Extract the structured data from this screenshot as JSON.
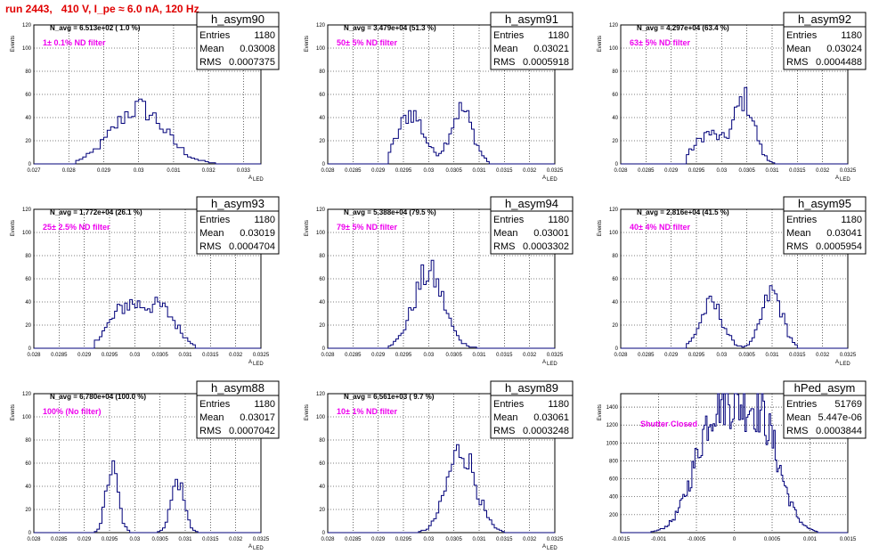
{
  "run_title": "run 2443,   410 V, I_pe ≈ 6.0 nA, 120 Hz",
  "colors": {
    "title": "#e00000",
    "annotation": "#ee00ee",
    "hist": "#00007a",
    "grid": "#000000"
  },
  "chart_data": [
    {
      "type": "histogram",
      "name": "h_asym90",
      "n_avg": "N_avg = 6.513e+02 ( 1.0 %)",
      "annotation": "1± 0.1% ND filter",
      "stats": {
        "Entries": "1180",
        "Mean": "0.03008",
        "RMS": "0.0007375"
      },
      "xlabel": "A",
      "xlabel_sub": "LED",
      "ylabel": "Events",
      "xlim": [
        0.027,
        0.0335
      ],
      "ylim": [
        0,
        120
      ],
      "xticks": [
        "0.027",
        "0.028",
        "0.029",
        "0.03",
        "0.031",
        "0.032",
        "0.033"
      ],
      "xtick_values": [
        0.027,
        0.028,
        0.029,
        0.03,
        0.031,
        0.032,
        0.033
      ],
      "yticks": [
        "0",
        "20",
        "40",
        "60",
        "80",
        "100",
        "120"
      ],
      "ytick_values": [
        0,
        20,
        40,
        60,
        80,
        100,
        120
      ],
      "bin_width": 0.0001,
      "peaks": [
        [
          0.03,
          48,
          0.00075
        ]
      ],
      "range": [
        0.0282,
        0.0322
      ]
    },
    {
      "type": "histogram",
      "name": "h_asym91",
      "n_avg": "N_avg = 3.479e+04 (51.3 %)",
      "annotation": "50± 5% ND filter",
      "stats": {
        "Entries": "1180",
        "Mean": "0.03021",
        "RMS": "0.0005918"
      },
      "xlabel": "A",
      "xlabel_sub": "LED",
      "ylabel": "Events",
      "xlim": [
        0.028,
        0.0325
      ],
      "ylim": [
        0,
        120
      ],
      "xticks": [
        "0.028",
        "0.0285",
        "0.029",
        "0.0295",
        "0.03",
        "0.0305",
        "0.031",
        "0.0315",
        "0.032",
        "0.0325"
      ],
      "xtick_values": [
        0.028,
        0.0285,
        0.029,
        0.0295,
        0.03,
        0.0305,
        0.031,
        0.0315,
        0.032,
        0.0325
      ],
      "yticks": [
        "0",
        "20",
        "40",
        "60",
        "80",
        "100",
        "120"
      ],
      "ytick_values": [
        0,
        20,
        40,
        60,
        80,
        100,
        120
      ],
      "bin_width": 5e-05,
      "peaks": [
        [
          0.02965,
          44,
          0.00025
        ],
        [
          0.03065,
          47,
          0.00022
        ]
      ],
      "range": [
        0.0292,
        0.0312
      ]
    },
    {
      "type": "histogram",
      "name": "h_asym92",
      "n_avg": "N_avg = 4.297e+04 (63.4 %)",
      "annotation": "63± 5% ND filter",
      "stats": {
        "Entries": "1180",
        "Mean": "0.03024",
        "RMS": "0.0004488"
      },
      "xlabel": "A",
      "xlabel_sub": "LED",
      "ylabel": "Events",
      "xlim": [
        0.028,
        0.0325
      ],
      "ylim": [
        0,
        120
      ],
      "xticks": [
        "0.028",
        "0.0285",
        "0.029",
        "0.0295",
        "0.03",
        "0.0305",
        "0.031",
        "0.0315",
        "0.032",
        "0.0325"
      ],
      "xtick_values": [
        0.028,
        0.0285,
        0.029,
        0.0295,
        0.03,
        0.0305,
        0.031,
        0.0315,
        0.032,
        0.0325
      ],
      "yticks": [
        "0",
        "20",
        "40",
        "60",
        "80",
        "100",
        "120"
      ],
      "ytick_values": [
        0,
        20,
        40,
        60,
        80,
        100,
        120
      ],
      "bin_width": 5e-05,
      "peaks": [
        [
          0.02975,
          26,
          0.00028
        ],
        [
          0.03045,
          55,
          0.0002
        ]
      ],
      "range": [
        0.0293,
        0.0314
      ]
    },
    {
      "type": "histogram",
      "name": "h_asym93",
      "n_avg": "N_avg = 1.772e+04 (26.1 %)",
      "annotation": "25± 2.5% ND filter",
      "stats": {
        "Entries": "1180",
        "Mean": "0.03019",
        "RMS": "0.0004704"
      },
      "xlabel": "A",
      "xlabel_sub": "LED",
      "ylabel": "Events",
      "xlim": [
        0.028,
        0.0325
      ],
      "ylim": [
        0,
        120
      ],
      "xticks": [
        "0.028",
        "0.0285",
        "0.029",
        "0.0295",
        "0.03",
        "0.0305",
        "0.031",
        "0.0315",
        "0.032",
        "0.0325"
      ],
      "xtick_values": [
        0.028,
        0.0285,
        0.029,
        0.0295,
        0.03,
        0.0305,
        0.031,
        0.0315,
        0.032,
        0.0325
      ],
      "yticks": [
        "0",
        "20",
        "40",
        "60",
        "80",
        "100",
        "120"
      ],
      "ytick_values": [
        0,
        20,
        40,
        60,
        80,
        100,
        120
      ],
      "bin_width": 5e-05,
      "peaks": [
        [
          0.02985,
          36,
          0.00035
        ],
        [
          0.03055,
          30,
          0.0003
        ]
      ],
      "range": [
        0.0292,
        0.0312
      ]
    },
    {
      "type": "histogram",
      "name": "h_asym94",
      "n_avg": "N_avg = 5.388e+04 (79.5 %)",
      "annotation": "79± 5% ND filter",
      "stats": {
        "Entries": "1180",
        "Mean": "0.03001",
        "RMS": "0.0003302"
      },
      "xlabel": "A",
      "xlabel_sub": "LED",
      "ylabel": "Events",
      "xlim": [
        0.028,
        0.0325
      ],
      "ylim": [
        0,
        120
      ],
      "xticks": [
        "0.028",
        "0.0285",
        "0.029",
        "0.0295",
        "0.03",
        "0.0305",
        "0.031",
        "0.0315",
        "0.032",
        "0.0325"
      ],
      "xtick_values": [
        0.028,
        0.0285,
        0.029,
        0.0295,
        0.03,
        0.0305,
        0.031,
        0.0315,
        0.032,
        0.0325
      ],
      "yticks": [
        "0",
        "20",
        "40",
        "60",
        "80",
        "100",
        "120"
      ],
      "ytick_values": [
        0,
        20,
        40,
        60,
        80,
        100,
        120
      ],
      "bin_width": 5e-05,
      "peaks": [
        [
          0.03,
          65,
          0.0003
        ]
      ],
      "range": [
        0.0292,
        0.031
      ]
    },
    {
      "type": "histogram",
      "name": "h_asym95",
      "n_avg": "N_avg = 2.816e+04 (41.5 %)",
      "annotation": "40± 4% ND filter",
      "stats": {
        "Entries": "1180",
        "Mean": "0.03041",
        "RMS": "0.0005954"
      },
      "xlabel": "A",
      "xlabel_sub": "LED",
      "ylabel": "Events",
      "xlim": [
        0.028,
        0.0325
      ],
      "ylim": [
        0,
        120
      ],
      "xticks": [
        "0.028",
        "0.0285",
        "0.029",
        "0.0295",
        "0.03",
        "0.0305",
        "0.031",
        "0.0315",
        "0.032",
        "0.0325"
      ],
      "xtick_values": [
        0.028,
        0.0285,
        0.029,
        0.0295,
        0.03,
        0.0305,
        0.031,
        0.0315,
        0.032,
        0.0325
      ],
      "yticks": [
        "0",
        "20",
        "40",
        "60",
        "80",
        "100",
        "120"
      ],
      "ytick_values": [
        0,
        20,
        40,
        60,
        80,
        100,
        120
      ],
      "bin_width": 5e-05,
      "peaks": [
        [
          0.0298,
          38,
          0.00022
        ],
        [
          0.031,
          48,
          0.0002
        ]
      ],
      "range": [
        0.0293,
        0.0315
      ]
    },
    {
      "type": "histogram",
      "name": "h_asym88",
      "n_avg": "N_avg = 6.780e+04 (100.0 %)",
      "annotation": "100% (No filter)",
      "stats": {
        "Entries": "1180",
        "Mean": "0.03017",
        "RMS": "0.0007042"
      },
      "xlabel": "A",
      "xlabel_sub": "LED",
      "ylabel": "Events",
      "xlim": [
        0.028,
        0.0325
      ],
      "ylim": [
        0,
        120
      ],
      "xticks": [
        "0.028",
        "0.0285",
        "0.029",
        "0.0295",
        "0.03",
        "0.0305",
        "0.031",
        "0.0315",
        "0.032",
        "0.0325"
      ],
      "xtick_values": [
        0.028,
        0.0285,
        0.029,
        0.0295,
        0.03,
        0.0305,
        0.031,
        0.0315,
        0.032,
        0.0325
      ],
      "yticks": [
        "0",
        "20",
        "40",
        "60",
        "80",
        "100",
        "120"
      ],
      "ytick_values": [
        0,
        20,
        40,
        60,
        80,
        100,
        120
      ],
      "bin_width": 5e-05,
      "peaks": [
        [
          0.02955,
          55,
          0.00012
        ],
        [
          0.03085,
          45,
          0.00013
        ]
      ],
      "range": [
        0.029,
        0.0315
      ]
    },
    {
      "type": "histogram",
      "name": "h_asym89",
      "n_avg": "N_avg = 6.561e+03 ( 9.7 %)",
      "annotation": "10± 1% ND filter",
      "stats": {
        "Entries": "1180",
        "Mean": "0.03061",
        "RMS": "0.0003248"
      },
      "xlabel": "A",
      "xlabel_sub": "LED",
      "ylabel": "Events",
      "xlim": [
        0.028,
        0.0325
      ],
      "ylim": [
        0,
        120
      ],
      "xticks": [
        "0.028",
        "0.0285",
        "0.029",
        "0.0295",
        "0.03",
        "0.0305",
        "0.031",
        "0.0315",
        "0.032",
        "0.0325"
      ],
      "xtick_values": [
        0.028,
        0.0285,
        0.029,
        0.0295,
        0.03,
        0.0305,
        0.031,
        0.0315,
        0.032,
        0.0325
      ],
      "yticks": [
        "0",
        "20",
        "40",
        "60",
        "80",
        "100",
        "120"
      ],
      "ytick_values": [
        0,
        20,
        40,
        60,
        80,
        100,
        120
      ],
      "bin_width": 5e-05,
      "peaks": [
        [
          0.03065,
          72,
          0.00028
        ]
      ],
      "range": [
        0.0298,
        0.0315
      ]
    },
    {
      "type": "histogram",
      "name": "hPed_asym",
      "n_avg": "",
      "annotation": "Shutter Closed",
      "stats": {
        "Entries": "51769",
        "Mean": "5.447e-06",
        "RMS": "0.0003844"
      },
      "xlabel": "",
      "xlabel_sub": "",
      "ylabel": "Events",
      "xlim": [
        -0.0015,
        0.0015
      ],
      "ylim": [
        0,
        1550
      ],
      "xticks": [
        "-0.0015",
        "-0.001",
        "-0.0005",
        "0",
        "0.0005",
        "0.001",
        "0.0015"
      ],
      "xtick_values": [
        -0.0015,
        -0.001,
        -0.0005,
        0,
        0.0005,
        0.001,
        0.0015
      ],
      "yticks": [
        "200",
        "400",
        "600",
        "800",
        "1000",
        "1200",
        "1400"
      ],
      "ytick_values": [
        200,
        400,
        600,
        800,
        1000,
        1200,
        1400
      ],
      "bin_width": 2e-05,
      "peaks": [
        [
          -0.00022,
          1380,
          0.00028
        ],
        [
          0.00035,
          1180,
          0.00025
        ]
      ],
      "range": [
        -0.0011,
        0.0011
      ]
    }
  ]
}
